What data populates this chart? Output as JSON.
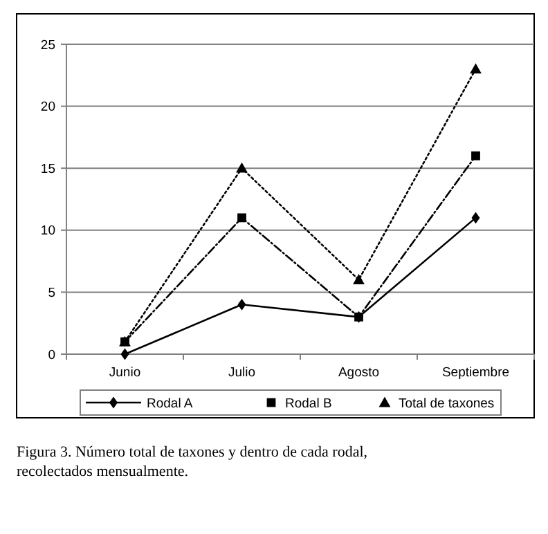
{
  "chart_data": {
    "type": "line",
    "categories": [
      "Junio",
      "Julio",
      "Agosto",
      "Septiembre"
    ],
    "series": [
      {
        "name": "Rodal A",
        "color": "#000000",
        "values": [
          0,
          4,
          3,
          11
        ],
        "marker": "diamond",
        "line_style": "solid"
      },
      {
        "name": "Rodal B",
        "color": "#000000",
        "values": [
          1,
          11,
          3,
          16
        ],
        "marker": "square",
        "line_style": "dashed"
      },
      {
        "name": "Total de taxones",
        "color": "#000000",
        "values": [
          1,
          15,
          6,
          23
        ],
        "marker": "triangle",
        "line_style": "dotted"
      }
    ],
    "ylim": [
      0,
      25
    ],
    "yticks": [
      0,
      5,
      10,
      15,
      20,
      25
    ],
    "grid": "y",
    "legend": "bottom",
    "annotations": [
      "Figura 3. Número total de taxones y dentro de cada rodal, recolectados mensualmente."
    ]
  }
}
